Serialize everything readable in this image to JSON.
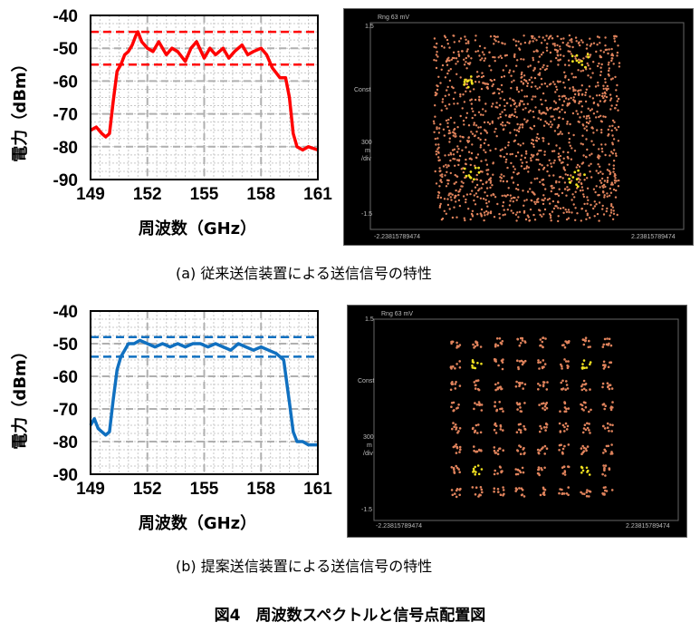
{
  "figure_title": "図4　周波数スペクトルと信号点配置図",
  "captions": {
    "a": "(a) 従来送信装置による送信信号の特性",
    "b": "(b) 提案送信装置による送信信号の特性"
  },
  "scope_labels": {
    "header": "Rng 63 mV",
    "y_top": "1.5",
    "const": "Const",
    "scale_value": "300",
    "scale_unit": "m",
    "scale_div": "/div",
    "y_bottom": "-1.5",
    "x_left": "-2.23815789474",
    "x_right": "2.23815789474",
    "x_left_a": "-2.23815789474",
    "x_right_a": "2.23815789474"
  },
  "chart_data": [
    {
      "type": "line",
      "panel": "a",
      "xlabel": "周波数（GHz）",
      "ylabel": "電力（dBm）",
      "xlim": [
        149,
        161
      ],
      "ylim": [
        -90,
        -40
      ],
      "xticks": [
        149,
        152,
        155,
        158,
        161
      ],
      "yticks": [
        -40,
        -50,
        -60,
        -70,
        -80,
        -90
      ],
      "color": "#ff0000",
      "grid": true,
      "reference_lines": [
        -45,
        -55
      ],
      "x": [
        149.0,
        149.3,
        149.6,
        149.8,
        150.0,
        150.2,
        150.4,
        150.6,
        150.8,
        151.0,
        151.2,
        151.4,
        151.5,
        151.7,
        152.0,
        152.3,
        152.6,
        153.0,
        153.3,
        153.6,
        154.0,
        154.3,
        154.6,
        155.0,
        155.3,
        155.6,
        156.0,
        156.3,
        156.6,
        157.0,
        157.3,
        157.6,
        158.0,
        158.3,
        158.6,
        159.0,
        159.3,
        159.5,
        159.7,
        159.9,
        160.2,
        160.5,
        161.0
      ],
      "y": [
        -75,
        -74,
        -76,
        -77,
        -76,
        -66,
        -57,
        -55,
        -52,
        -51,
        -49,
        -46,
        -45,
        -48,
        -50,
        -51,
        -48,
        -52,
        -50,
        -51,
        -54,
        -50,
        -48,
        -53,
        -50,
        -52,
        -50,
        -53,
        -51,
        -49,
        -52,
        -51,
        -50,
        -52,
        -56,
        -59,
        -59,
        -65,
        -76,
        -80,
        -81,
        -80,
        -81
      ]
    },
    {
      "type": "line",
      "panel": "b",
      "xlabel": "周波数（GHz）",
      "ylabel": "電力（dBm）",
      "xlim": [
        149,
        161
      ],
      "ylim": [
        -90,
        -40
      ],
      "xticks": [
        149,
        152,
        155,
        158,
        161
      ],
      "yticks": [
        -40,
        -50,
        -60,
        -70,
        -80,
        -90
      ],
      "color": "#1070c0",
      "grid": true,
      "reference_lines": [
        -48,
        -54
      ],
      "x": [
        149.0,
        149.2,
        149.4,
        149.6,
        149.8,
        150.0,
        150.2,
        150.4,
        150.6,
        150.8,
        151.0,
        151.3,
        151.6,
        152.0,
        152.4,
        152.8,
        153.2,
        153.6,
        154.0,
        154.4,
        154.8,
        155.2,
        155.6,
        156.0,
        156.4,
        156.8,
        157.2,
        157.6,
        158.0,
        158.4,
        158.8,
        159.2,
        159.5,
        159.7,
        159.9,
        160.2,
        160.5,
        161.0
      ],
      "y": [
        -75,
        -73,
        -76,
        -77,
        -78,
        -77,
        -67,
        -58,
        -54,
        -52,
        -50,
        -50,
        -49,
        -50,
        -51,
        -50,
        -51,
        -50,
        -51,
        -50,
        -50,
        -51,
        -50,
        -51,
        -52,
        -50,
        -51,
        -52,
        -51,
        -52,
        -53,
        -55,
        -68,
        -77,
        -80,
        -80,
        -81,
        -81
      ]
    }
  ],
  "constellations": [
    {
      "panel": "a",
      "pattern": "scattered noisy constellation",
      "colors": [
        "#e0835c",
        "#f0e020"
      ]
    },
    {
      "panel": "b",
      "pattern": "64-point grid constellation",
      "grid_size": 8,
      "colors": [
        "#e0835c",
        "#f0e020"
      ]
    }
  ]
}
